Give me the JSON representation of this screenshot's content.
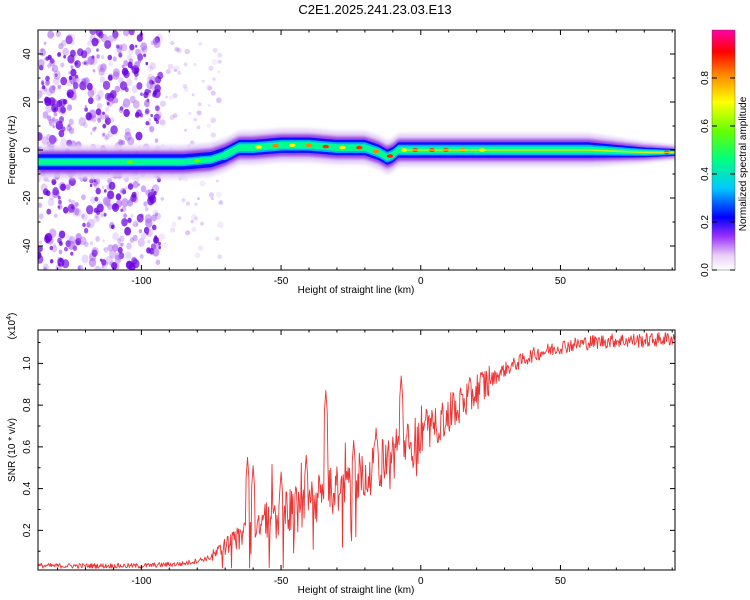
{
  "title": "C2E1.2025.241.23.03.E13",
  "chart_data": [
    {
      "type": "heatmap",
      "name": "spectrogram",
      "xlabel": "Height of straight line (km)",
      "ylabel": "Frequency (Hz)",
      "xlim": [
        -137,
        91
      ],
      "ylim": [
        -50,
        50
      ],
      "xticks": [
        -100,
        -50,
        0,
        50
      ],
      "xtick_labels": [
        "-100",
        "-50",
        "0",
        "50"
      ],
      "yticks": [
        -40,
        -20,
        0,
        20,
        40
      ],
      "ytick_labels": [
        "-40",
        "-20",
        "0",
        "20",
        "40"
      ],
      "ridge": {
        "x": [
          -137,
          -110,
          -95,
          -85,
          -75,
          -70,
          -65,
          -60,
          -50,
          -40,
          -30,
          -20,
          -15,
          -12,
          -10,
          -8,
          -5,
          0,
          10,
          20,
          40,
          60,
          80,
          91
        ],
        "freq": [
          -5,
          -5,
          -5,
          -5,
          -4,
          -2,
          1,
          1,
          2,
          2,
          1,
          1,
          -1,
          -3,
          -2,
          0,
          0,
          0,
          0,
          0,
          0,
          0,
          -1,
          -1
        ]
      },
      "colorbar": {
        "label": "Normalized spectral amplitude",
        "range": [
          0,
          1
        ],
        "ticks": [
          0.0,
          0.2,
          0.4,
          0.6,
          0.8
        ],
        "tick_labels": [
          "0.0",
          "0.2",
          "0.4",
          "0.6",
          "0.8"
        ]
      }
    },
    {
      "type": "line",
      "name": "snr",
      "xlabel": "Height of straight line (km)",
      "ylabel": "SNR (10 * v/v)",
      "y_multiplier": "(x10",
      "y_multiplier_exp": "4",
      "y_multiplier_close": ")",
      "xlim": [
        -137,
        91
      ],
      "ylim": [
        0.01,
        1.16
      ],
      "xticks": [
        -100,
        -50,
        0,
        50
      ],
      "xtick_labels": [
        "-100",
        "-50",
        "0",
        "50"
      ],
      "yticks": [
        0.2,
        0.4,
        0.6,
        0.8,
        1.0
      ],
      "ytick_labels": [
        "0.2",
        "0.4",
        "0.6",
        "0.8",
        "1.0"
      ],
      "color": "#ee3333",
      "trend": {
        "x": [
          -137,
          -100,
          -85,
          -75,
          -70,
          -65,
          -60,
          -50,
          -40,
          -30,
          -20,
          -10,
          0,
          10,
          20,
          30,
          40,
          50,
          60,
          70,
          80,
          91
        ],
        "y": [
          0.03,
          0.03,
          0.04,
          0.07,
          0.12,
          0.17,
          0.22,
          0.27,
          0.33,
          0.4,
          0.47,
          0.56,
          0.64,
          0.75,
          0.87,
          0.97,
          1.04,
          1.08,
          1.1,
          1.11,
          1.11,
          1.12
        ]
      },
      "spikes": [
        {
          "x": -62,
          "y": 0.55
        },
        {
          "x": -60,
          "y": 0.51
        },
        {
          "x": -50,
          "y": 0.48
        },
        {
          "x": -41,
          "y": 0.56
        },
        {
          "x": -34,
          "y": 0.87
        },
        {
          "x": -24,
          "y": 0.63
        },
        {
          "x": -16,
          "y": 0.69
        },
        {
          "x": -7,
          "y": 0.94
        },
        {
          "x": 2,
          "y": 0.78
        }
      ]
    }
  ]
}
